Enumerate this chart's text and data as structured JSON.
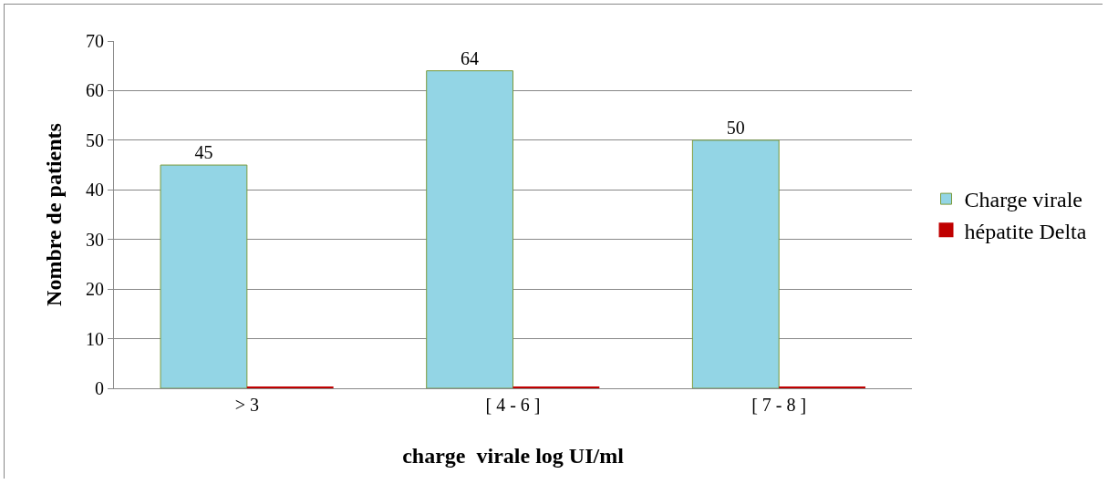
{
  "chart_data": {
    "type": "bar",
    "categories": [
      "> 3",
      "[ 4 - 6 ]",
      "[ 7 - 8 ]"
    ],
    "series": [
      {
        "name": "Charge virale",
        "color": "#93d5e5",
        "values": [
          45,
          64,
          50
        ],
        "value_labels": [
          "45",
          "64",
          "50"
        ]
      },
      {
        "name": "hépatite Delta",
        "color": "#c00000",
        "values": [
          0,
          0,
          0
        ]
      }
    ],
    "xlabel": "charge  virale log UI/ml",
    "ylabel": "Nombre de patients",
    "ylim": [
      0,
      70
    ],
    "yticks": [
      0,
      10,
      20,
      30,
      40,
      50,
      60,
      70
    ],
    "grid": "y",
    "legend": "right"
  }
}
